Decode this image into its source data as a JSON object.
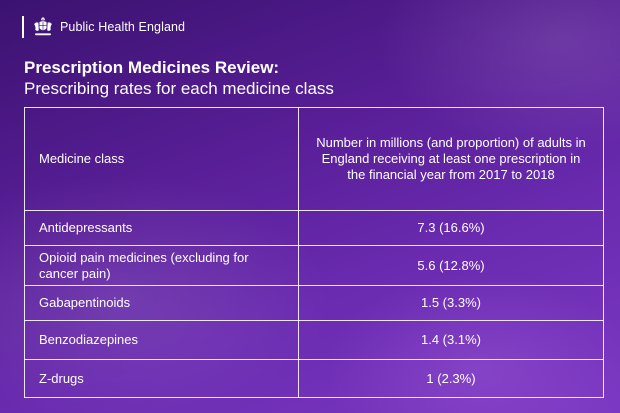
{
  "header": {
    "organisation": "Public Health England",
    "logo_icon": "royal-crest-icon"
  },
  "title": "Prescription Medicines Review:",
  "subtitle": "Prescribing rates for each medicine class",
  "table": {
    "columns": [
      "Medicine class",
      "Number in millions (and proportion) of adults in England receiving at least one prescription in the financial year from 2017 to 2018"
    ],
    "rows": [
      {
        "medicine_class": "Antidepressants",
        "value": "7.3 (16.6%)"
      },
      {
        "medicine_class": "Opioid pain medicines (excluding for cancer pain)",
        "value": "5.6 (12.8%)"
      },
      {
        "medicine_class": "Gabapentinoids",
        "value": "1.5 (3.3%)"
      },
      {
        "medicine_class": "Benzodiazepines",
        "value": "1.4 (3.1%)"
      },
      {
        "medicine_class": "Z-drugs",
        "value": "1 (2.3%)"
      }
    ]
  },
  "colors": {
    "background_dark": "#3b1270",
    "background_light": "#7b38c2",
    "text": "#ffffff",
    "rule": "#ffffff"
  }
}
